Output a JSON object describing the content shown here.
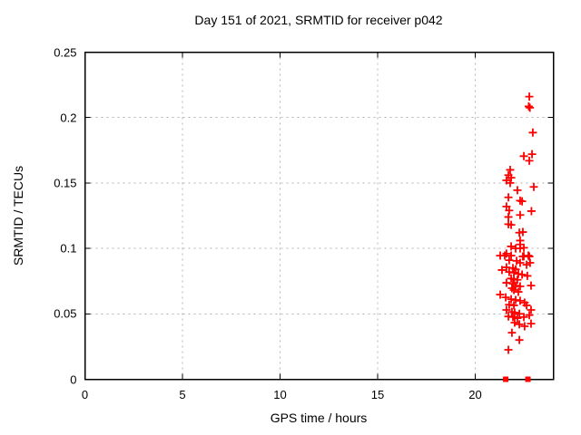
{
  "title": "Day 151 of 2021, SRMTID for receiver p042",
  "colors": {
    "marker": "#ff0000",
    "grid": "#b3b3b3",
    "axis": "#000000",
    "background": "#ffffff",
    "text": "#000000"
  },
  "chart_data": {
    "type": "scatter",
    "title": "Day 151 of 2021, SRMTID for receiver p042",
    "xlabel": "GPS time / hours",
    "ylabel": "SRMTID / TECUs",
    "xlim": [
      0,
      24
    ],
    "ylim": [
      0,
      0.25
    ],
    "grid": true,
    "legend_position": "none",
    "xticks": [
      {
        "v": 0,
        "label": "0"
      },
      {
        "v": 5,
        "label": "5"
      },
      {
        "v": 10,
        "label": "10"
      },
      {
        "v": 15,
        "label": "15"
      },
      {
        "v": 20,
        "label": "20"
      }
    ],
    "yticks": [
      {
        "v": 0,
        "label": "0"
      },
      {
        "v": 0.05,
        "label": "0.05"
      },
      {
        "v": 0.1,
        "label": "0.1"
      },
      {
        "v": 0.15,
        "label": "0.15"
      },
      {
        "v": 0.2,
        "label": "0.2"
      },
      {
        "v": 0.25,
        "label": "0.25"
      }
    ],
    "series": [
      {
        "name": "srmtid-points",
        "marker": "plus",
        "color": "#ff0000",
        "points": [
          [
            22.77,
            0.216
          ],
          [
            22.74,
            0.2085
          ],
          [
            22.8,
            0.2075
          ],
          [
            22.95,
            0.1885
          ],
          [
            22.49,
            0.1705
          ],
          [
            22.91,
            0.172
          ],
          [
            22.77,
            0.167
          ],
          [
            21.79,
            0.16
          ],
          [
            21.7,
            0.156
          ],
          [
            21.84,
            0.154
          ],
          [
            21.6,
            0.152
          ],
          [
            21.79,
            0.15
          ],
          [
            22.16,
            0.1445
          ],
          [
            23.0,
            0.147
          ],
          [
            21.7,
            0.139
          ],
          [
            22.4,
            0.136
          ],
          [
            22.3,
            0.1365
          ],
          [
            21.6,
            0.132
          ],
          [
            21.74,
            0.129
          ],
          [
            22.3,
            0.1255
          ],
          [
            22.88,
            0.1285
          ],
          [
            21.7,
            0.124
          ],
          [
            21.7,
            0.1185
          ],
          [
            21.84,
            0.118
          ],
          [
            22.26,
            0.112
          ],
          [
            22.44,
            0.1125
          ],
          [
            22.3,
            0.106
          ],
          [
            22.3,
            0.103
          ],
          [
            21.84,
            0.1015
          ],
          [
            22.07,
            0.1
          ],
          [
            22.3,
            0.1
          ],
          [
            22.49,
            0.1005
          ],
          [
            21.6,
            0.096
          ],
          [
            21.84,
            0.0945
          ],
          [
            22.49,
            0.094
          ],
          [
            22.72,
            0.0945
          ],
          [
            21.28,
            0.0945
          ],
          [
            21.51,
            0.0945
          ],
          [
            22.44,
            0.0938
          ],
          [
            22.77,
            0.0938
          ],
          [
            21.74,
            0.091
          ],
          [
            22.12,
            0.0905
          ],
          [
            22.3,
            0.089
          ],
          [
            22.63,
            0.0875
          ],
          [
            22.81,
            0.089
          ],
          [
            21.6,
            0.0855
          ],
          [
            21.93,
            0.085
          ],
          [
            22.07,
            0.084
          ],
          [
            21.37,
            0.0835
          ],
          [
            21.74,
            0.082
          ],
          [
            21.98,
            0.0815
          ],
          [
            22.21,
            0.0805
          ],
          [
            22.4,
            0.08
          ],
          [
            22.67,
            0.079
          ],
          [
            21.84,
            0.077
          ],
          [
            21.98,
            0.0765
          ],
          [
            22.16,
            0.076
          ],
          [
            22.86,
            0.0716
          ],
          [
            21.6,
            0.0737
          ],
          [
            21.93,
            0.073
          ],
          [
            22.07,
            0.0716
          ],
          [
            22.3,
            0.071
          ],
          [
            21.88,
            0.0696
          ],
          [
            21.98,
            0.0682
          ],
          [
            22.21,
            0.0668
          ],
          [
            21.28,
            0.0647
          ],
          [
            21.56,
            0.0626
          ],
          [
            21.84,
            0.0612
          ],
          [
            22.07,
            0.0606
          ],
          [
            22.3,
            0.06
          ],
          [
            22.53,
            0.0585
          ],
          [
            21.74,
            0.057
          ],
          [
            21.98,
            0.0565
          ],
          [
            22.63,
            0.0565
          ],
          [
            21.6,
            0.053
          ],
          [
            21.88,
            0.0515
          ],
          [
            22.02,
            0.051
          ],
          [
            22.26,
            0.05
          ],
          [
            22.86,
            0.053
          ],
          [
            21.7,
            0.048
          ],
          [
            21.93,
            0.0475
          ],
          [
            22.16,
            0.0467
          ],
          [
            22.49,
            0.0475
          ],
          [
            22.77,
            0.049
          ],
          [
            22.02,
            0.0433
          ],
          [
            22.26,
            0.042
          ],
          [
            22.53,
            0.0405
          ],
          [
            22.86,
            0.0425
          ],
          [
            21.88,
            0.0356
          ],
          [
            22.26,
            0.03
          ],
          [
            21.7,
            0.0225
          ]
        ]
      },
      {
        "name": "zero-flags",
        "marker": "square",
        "color": "#ff0000",
        "points": [
          [
            21.56,
            0
          ],
          [
            22.7,
            0
          ]
        ]
      }
    ]
  }
}
